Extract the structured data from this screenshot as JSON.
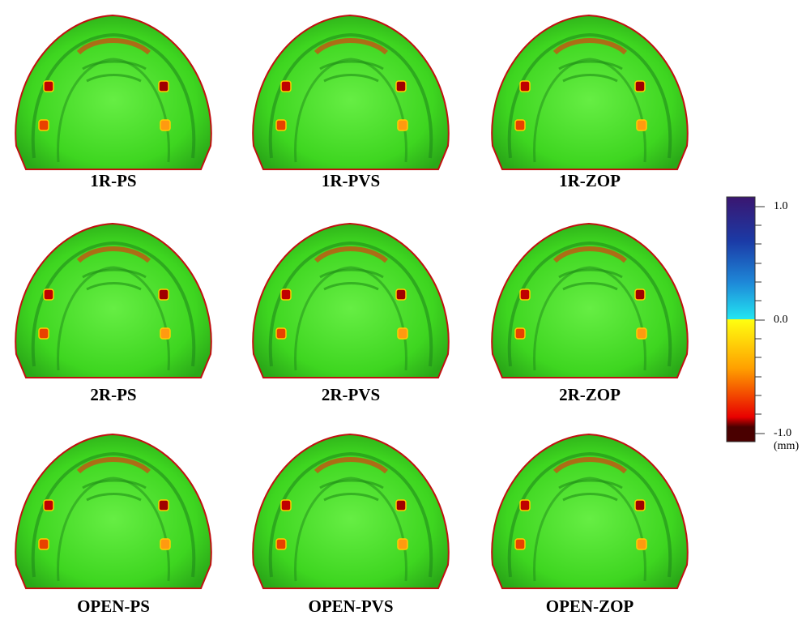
{
  "panels": [
    [
      "1R-PS",
      "1R-PVS",
      "1R-ZOP"
    ],
    [
      "2R-PS",
      "2R-PVS",
      "2R-ZOP"
    ],
    [
      "OPEN-PS",
      "OPEN-PVS",
      "OPEN-ZOP"
    ]
  ],
  "colorbar": {
    "ticks": [
      {
        "value": 1,
        "label": "1.0"
      },
      {
        "value": 0,
        "label": "0.0"
      },
      {
        "value": -1,
        "label": "-1.0"
      }
    ],
    "unit": "(mm)"
  }
}
